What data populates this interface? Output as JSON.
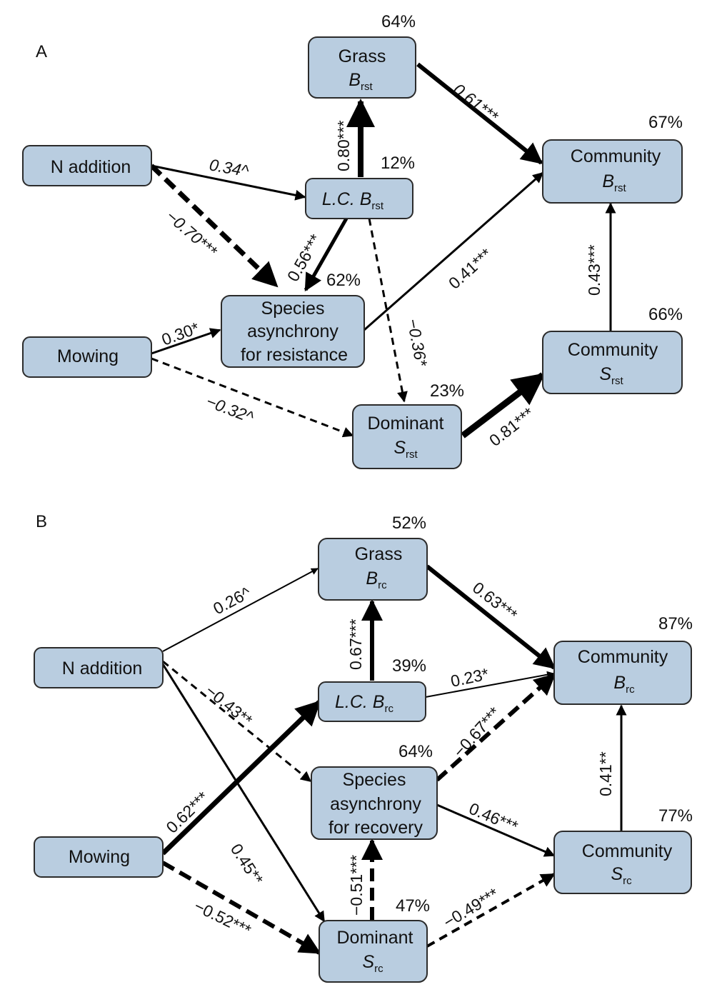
{
  "panels": [
    {
      "label": "A",
      "nodes": {
        "grass": {
          "line1": "Grass",
          "sym": "B",
          "sub": "rst",
          "pct": "64%"
        },
        "nadd": {
          "line1": "N addition"
        },
        "lc": {
          "prefix": "L.C. ",
          "sym": "B",
          "sub": "rst",
          "pct": "12%"
        },
        "community_b": {
          "line1": "Community",
          "sym": "B",
          "sub": "rst",
          "pct": "67%"
        },
        "mowing": {
          "line1": "Mowing"
        },
        "asyn": {
          "line1": "Species",
          "line2": "asynchrony",
          "line3": "for resistance",
          "pct": "62%"
        },
        "community_s": {
          "line1": "Community",
          "sym": "S",
          "sub": "rst",
          "pct": "66%"
        },
        "dominant": {
          "line1": "Dominant",
          "sym": "S",
          "sub": "rst",
          "pct": "23%"
        }
      },
      "paths": [
        {
          "from": "lc",
          "to": "grass",
          "coef": "0.80***",
          "sign": "positive"
        },
        {
          "from": "grass",
          "to": "community_b",
          "coef": "0.61***",
          "sign": "positive"
        },
        {
          "from": "nadd",
          "to": "lc",
          "coef": "0.34^",
          "sign": "positive"
        },
        {
          "from": "nadd",
          "to": "asyn",
          "coef": "−0.70***",
          "sign": "negative"
        },
        {
          "from": "lc",
          "to": "asyn",
          "coef": "0.56***",
          "sign": "positive"
        },
        {
          "from": "lc",
          "to": "dominant",
          "coef": "−0.36*",
          "sign": "negative"
        },
        {
          "from": "asyn",
          "to": "community_b",
          "coef": "0.41***",
          "sign": "positive"
        },
        {
          "from": "mowing",
          "to": "asyn",
          "coef": "0.30*",
          "sign": "positive"
        },
        {
          "from": "mowing",
          "to": "dominant",
          "coef": "−0.32^",
          "sign": "negative"
        },
        {
          "from": "dominant",
          "to": "community_s",
          "coef": "0.81***",
          "sign": "positive"
        },
        {
          "from": "community_s",
          "to": "community_b",
          "coef": "0.43***",
          "sign": "positive"
        }
      ]
    },
    {
      "label": "B",
      "nodes": {
        "grass": {
          "line1": "Grass",
          "sym": "B",
          "sub": "rc",
          "pct": "52%"
        },
        "nadd": {
          "line1": "N addition"
        },
        "lc": {
          "prefix": "L.C. ",
          "sym": "B",
          "sub": "rc",
          "pct": "39%"
        },
        "community_b": {
          "line1": "Community",
          "sym": "B",
          "sub": "rc",
          "pct": "87%"
        },
        "asyn": {
          "line1": "Species",
          "line2": "asynchrony",
          "line3": "for recovery",
          "pct": "64%"
        },
        "mowing": {
          "line1": "Mowing"
        },
        "community_s": {
          "line1": "Community",
          "sym": "S",
          "sub": "rc",
          "pct": "77%"
        },
        "dominant": {
          "line1": "Dominant",
          "sym": "S",
          "sub": "rc",
          "pct": "47%"
        }
      },
      "paths": [
        {
          "from": "nadd",
          "to": "grass",
          "coef": "0.26^",
          "sign": "positive"
        },
        {
          "from": "grass",
          "to": "community_b",
          "coef": "0.63***",
          "sign": "positive"
        },
        {
          "from": "lc",
          "to": "grass",
          "coef": "0.67***",
          "sign": "positive"
        },
        {
          "from": "lc",
          "to": "community_b",
          "coef": "0.23*",
          "sign": "positive"
        },
        {
          "from": "nadd",
          "to": "asyn",
          "coef": "−0.43**",
          "sign": "negative"
        },
        {
          "from": "asyn",
          "to": "community_b",
          "coef": "−0.67***",
          "sign": "negative"
        },
        {
          "from": "mowing",
          "to": "lc",
          "coef": "0.62***",
          "sign": "positive"
        },
        {
          "from": "nadd",
          "to": "dominant",
          "coef": "0.45**",
          "sign": "positive"
        },
        {
          "from": "asyn",
          "to": "community_s",
          "coef": "0.46***",
          "sign": "positive"
        },
        {
          "from": "community_s",
          "to": "community_b",
          "coef": "0.41**",
          "sign": "positive"
        },
        {
          "from": "dominant",
          "to": "asyn",
          "coef": "−0.51***",
          "sign": "negative"
        },
        {
          "from": "mowing",
          "to": "dominant",
          "coef": "−0.52***",
          "sign": "negative"
        },
        {
          "from": "dominant",
          "to": "community_s",
          "coef": "−0.49***",
          "sign": "negative"
        }
      ]
    }
  ],
  "colors": {
    "box_fill": "#b9cde0",
    "box_stroke": "#2b2b2b",
    "arrow": "#000000"
  }
}
